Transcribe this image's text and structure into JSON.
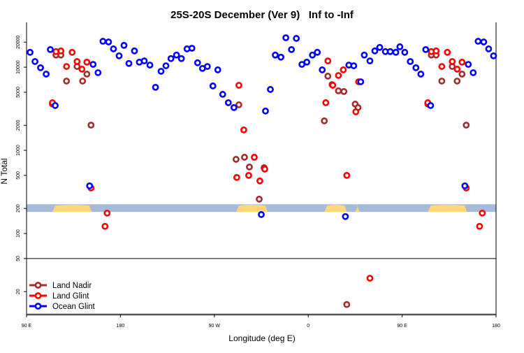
{
  "chart_data": {
    "type": "scatter",
    "title": "25S-20S December (Ver 9)   Inf to -Inf",
    "xlabel": "Longitude (deg E)",
    "ylabel": "N Total",
    "x_scale": "linear (continuous longitude, wraps)",
    "xlim": [
      90,
      540
    ],
    "x_ticks": [
      {
        "value": 90,
        "label": "90 E"
      },
      {
        "value": 180,
        "label": "180"
      },
      {
        "value": 270,
        "label": "90 W"
      },
      {
        "value": 360,
        "label": "0"
      },
      {
        "value": 450,
        "label": "90 E"
      },
      {
        "value": 540,
        "label": "180"
      }
    ],
    "y_scale": "log",
    "ylim": [
      10.6,
      30800
    ],
    "y_ticks": [
      {
        "value": 20,
        "label": "20"
      },
      {
        "value": 50,
        "label": "50"
      },
      {
        "value": 100,
        "label": "100"
      },
      {
        "value": 200,
        "label": "200"
      },
      {
        "value": 500,
        "label": "500"
      },
      {
        "value": 1000,
        "label": "1000"
      },
      {
        "value": 2000,
        "label": "2000"
      },
      {
        "value": 5000,
        "label": "5000"
      },
      {
        "value": 10000,
        "label": "10000"
      },
      {
        "value": 20000,
        "label": "20000"
      }
    ],
    "reference_line_value": 50,
    "surface_band": {
      "value": 200,
      "ocean_color": "#a7bad9",
      "land_color": "#fdd876",
      "land_segments": [
        [
          114.8,
          152.3
        ],
        [
          290.8,
          321.0
        ],
        [
          375.4,
          396.9
        ],
        [
          405.0,
          409.0
        ],
        [
          474.6,
          512.0
        ]
      ]
    },
    "legend": {
      "placement": "bottom-left"
    },
    "series": [
      {
        "name": "Land Nadir",
        "color": "#a52a2a",
        "points": [
          [
            114.8,
            3600
          ],
          [
            118.2,
            14000
          ],
          [
            122.9,
            14000
          ],
          [
            128.3,
            6810
          ],
          [
            138.4,
            10200
          ],
          [
            143.7,
            6810
          ],
          [
            147.8,
            8260
          ],
          [
            151.8,
            2010
          ],
          [
            290.8,
            780
          ],
          [
            293.5,
            3530
          ],
          [
            298.9,
            826
          ],
          [
            303.6,
            631
          ],
          [
            313.0,
            259
          ],
          [
            317.7,
            618
          ],
          [
            375.4,
            2260
          ],
          [
            378.8,
            7800
          ],
          [
            382.8,
            6180
          ],
          [
            388.9,
            5200
          ],
          [
            394.2,
            5100
          ],
          [
            396.9,
            14
          ],
          [
            405.0,
            3600
          ],
          [
            407.7,
            3270
          ],
          [
            474.6,
            3600
          ],
          [
            477.9,
            14000
          ],
          [
            482.6,
            14000
          ],
          [
            488.0,
            6810
          ],
          [
            498.0,
            10200
          ],
          [
            502.7,
            6810
          ],
          [
            507.4,
            8260
          ],
          [
            511.4,
            2010
          ]
        ]
      },
      {
        "name": "Land Glint",
        "color": "#ff0000",
        "points": [
          [
            114.8,
            3740
          ],
          [
            118.2,
            15400
          ],
          [
            122.9,
            15700
          ],
          [
            128.3,
            10200
          ],
          [
            133.7,
            15100
          ],
          [
            138.4,
            11700
          ],
          [
            143.1,
            9470
          ],
          [
            147.8,
            11500
          ],
          [
            151.8,
            353
          ],
          [
            165.2,
            122
          ],
          [
            167.2,
            176
          ],
          [
            291.5,
            472
          ],
          [
            293.5,
            6060
          ],
          [
            298.2,
            1760
          ],
          [
            302.9,
            500
          ],
          [
            308.3,
            826
          ],
          [
            313.6,
            429
          ],
          [
            318.3,
            595
          ],
          [
            376.8,
            3740
          ],
          [
            378.8,
            11900
          ],
          [
            383.5,
            6060
          ],
          [
            388.9,
            7950
          ],
          [
            393.6,
            9290
          ],
          [
            396.9,
            500
          ],
          [
            405.6,
            2910
          ],
          [
            408.3,
            6680
          ],
          [
            419.1,
            29
          ],
          [
            474.6,
            3740
          ],
          [
            477.9,
            15400
          ],
          [
            482.6,
            15700
          ],
          [
            488.0,
            10200
          ],
          [
            493.3,
            15100
          ],
          [
            498.0,
            11700
          ],
          [
            502.7,
            9470
          ],
          [
            507.4,
            11500
          ],
          [
            511.4,
            353
          ],
          [
            524.2,
            122
          ],
          [
            526.8,
            176
          ]
        ]
      },
      {
        "name": "Ocean Glint",
        "color": "#0000ff",
        "points": [
          [
            93.4,
            15100
          ],
          [
            98.1,
            11700
          ],
          [
            103.4,
            9850
          ],
          [
            108.8,
            8260
          ],
          [
            112.8,
            16300
          ],
          [
            117.5,
            3460
          ],
          [
            150.4,
            374
          ],
          [
            153.8,
            10800
          ],
          [
            158.5,
            8590
          ],
          [
            163.2,
            20500
          ],
          [
            168.6,
            20100
          ],
          [
            173.3,
            16600
          ],
          [
            178.7,
            13700
          ],
          [
            183.4,
            18300
          ],
          [
            188.1,
            11100
          ],
          [
            193.4,
            15700
          ],
          [
            198.1,
            11500
          ],
          [
            202.8,
            11900
          ],
          [
            208.2,
            10600
          ],
          [
            213.6,
            5730
          ],
          [
            218.9,
            8930
          ],
          [
            223.6,
            10400
          ],
          [
            228.4,
            12700
          ],
          [
            233.7,
            14000
          ],
          [
            238.4,
            12700
          ],
          [
            243.8,
            16600
          ],
          [
            248.5,
            16900
          ],
          [
            253.9,
            11300
          ],
          [
            258.6,
            9660
          ],
          [
            263.3,
            10200
          ],
          [
            268.6,
            5950
          ],
          [
            273.3,
            9290
          ],
          [
            278.0,
            4720
          ],
          [
            283.4,
            3740
          ],
          [
            288.8,
            3270
          ],
          [
            315.0,
            169
          ],
          [
            319.0,
            2970
          ],
          [
            323.7,
            5400
          ],
          [
            328.4,
            14000
          ],
          [
            333.8,
            13200
          ],
          [
            338.5,
            22600
          ],
          [
            343.9,
            16300
          ],
          [
            348.6,
            22200
          ],
          [
            353.9,
            10800
          ],
          [
            358.6,
            11500
          ],
          [
            364.0,
            14000
          ],
          [
            368.7,
            15100
          ],
          [
            373.4,
            9290
          ],
          [
            395.6,
            160
          ],
          [
            398.9,
            10600
          ],
          [
            403.6,
            10400
          ],
          [
            410.3,
            6680
          ],
          [
            413.7,
            14000
          ],
          [
            419.1,
            11900
          ],
          [
            423.8,
            15700
          ],
          [
            428.5,
            17300
          ],
          [
            433.9,
            15400
          ],
          [
            438.6,
            15400
          ],
          [
            443.9,
            15100
          ],
          [
            447.8,
            17600
          ],
          [
            452.5,
            15100
          ],
          [
            457.8,
            11700
          ],
          [
            463.2,
            9850
          ],
          [
            467.9,
            8260
          ],
          [
            472.6,
            16300
          ],
          [
            477.3,
            3460
          ],
          [
            510.1,
            374
          ],
          [
            513.4,
            10800
          ],
          [
            518.1,
            8590
          ],
          [
            522.8,
            20500
          ],
          [
            528.2,
            20100
          ],
          [
            532.9,
            16600
          ],
          [
            537.6,
            13700
          ]
        ]
      }
    ]
  }
}
